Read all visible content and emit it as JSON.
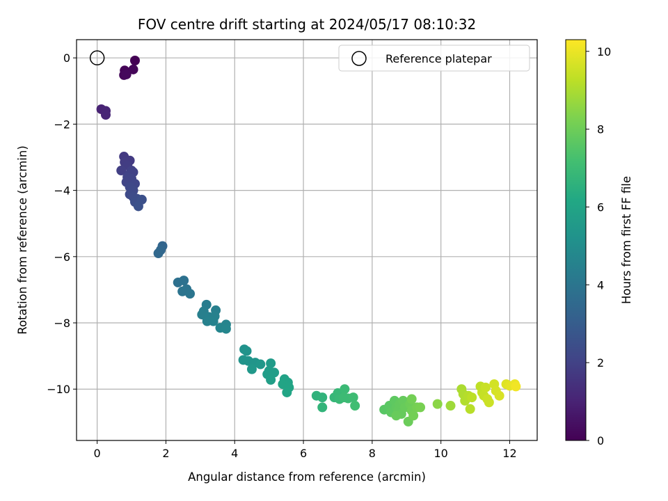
{
  "chart_data": {
    "type": "scatter",
    "title": "FOV centre drift starting at 2024/05/17 08:10:32",
    "xlabel": "Angular distance from reference (arcmin)",
    "ylabel": "Rotation from reference (arcmin)",
    "xlim": [
      -0.6,
      12.8
    ],
    "ylim": [
      -11.55,
      0.55
    ],
    "xticks": [
      0,
      2,
      4,
      6,
      8,
      10,
      12
    ],
    "yticks": [
      0,
      -2,
      -4,
      -6,
      -8,
      -10
    ],
    "grid": true,
    "legend": {
      "position": "top-right",
      "entries": [
        "Reference platepar"
      ]
    },
    "reference_point": {
      "label": "Reference platepar",
      "x": 0,
      "y": 0
    },
    "colorbar": {
      "label": "Hours from first FF file",
      "colormap": "viridis",
      "range": [
        0,
        10.3
      ],
      "ticks": [
        0,
        2,
        4,
        6,
        8,
        10
      ]
    },
    "series": [
      {
        "points": [
          [
            1.1,
            -0.08,
            0.0
          ],
          [
            0.8,
            -0.38,
            0.1
          ],
          [
            1.05,
            -0.35,
            0.15
          ],
          [
            0.78,
            -0.52,
            0.2
          ],
          [
            0.85,
            -0.5,
            0.25
          ],
          [
            0.12,
            -1.55,
            1.0
          ],
          [
            0.25,
            -1.6,
            1.05
          ],
          [
            0.25,
            -1.72,
            1.1
          ],
          [
            0.78,
            -2.98,
            1.7
          ],
          [
            0.95,
            -3.1,
            1.75
          ],
          [
            0.8,
            -3.15,
            1.8
          ],
          [
            0.88,
            -3.25,
            1.85
          ],
          [
            0.7,
            -3.4,
            1.9
          ],
          [
            1.0,
            -3.4,
            1.95
          ],
          [
            0.95,
            -3.5,
            2.0
          ],
          [
            1.05,
            -3.45,
            2.0
          ],
          [
            0.88,
            -3.6,
            2.05
          ],
          [
            1.0,
            -3.65,
            2.1
          ],
          [
            0.85,
            -3.75,
            2.1
          ],
          [
            1.1,
            -3.8,
            2.15
          ],
          [
            0.95,
            -3.9,
            2.2
          ],
          [
            1.05,
            -4.0,
            2.25
          ],
          [
            0.95,
            -4.12,
            2.3
          ],
          [
            1.05,
            -4.2,
            2.35
          ],
          [
            1.15,
            -4.25,
            2.4
          ],
          [
            1.1,
            -4.35,
            2.45
          ],
          [
            1.3,
            -4.28,
            2.5
          ],
          [
            1.2,
            -4.48,
            2.55
          ],
          [
            1.9,
            -5.68,
            3.35
          ],
          [
            1.85,
            -5.8,
            3.4
          ],
          [
            1.78,
            -5.9,
            3.45
          ],
          [
            2.35,
            -6.78,
            3.8
          ],
          [
            2.52,
            -6.72,
            3.85
          ],
          [
            2.6,
            -6.98,
            3.9
          ],
          [
            2.48,
            -7.05,
            3.95
          ],
          [
            2.7,
            -7.12,
            4.0
          ],
          [
            3.18,
            -7.45,
            4.3
          ],
          [
            3.1,
            -7.65,
            4.35
          ],
          [
            3.45,
            -7.62,
            4.4
          ],
          [
            3.05,
            -7.75,
            4.4
          ],
          [
            3.25,
            -7.82,
            4.45
          ],
          [
            3.2,
            -7.95,
            4.5
          ],
          [
            3.42,
            -7.8,
            4.5
          ],
          [
            3.38,
            -7.95,
            4.55
          ],
          [
            3.75,
            -8.05,
            4.6
          ],
          [
            3.58,
            -8.15,
            4.65
          ],
          [
            3.75,
            -8.18,
            4.7
          ],
          [
            4.28,
            -8.8,
            5.2
          ],
          [
            4.35,
            -8.85,
            5.25
          ],
          [
            4.25,
            -9.12,
            5.3
          ],
          [
            4.4,
            -9.15,
            5.3
          ],
          [
            4.6,
            -9.2,
            5.35
          ],
          [
            4.75,
            -9.25,
            5.4
          ],
          [
            4.5,
            -9.4,
            5.45
          ],
          [
            5.05,
            -9.22,
            5.6
          ],
          [
            5.0,
            -9.45,
            5.65
          ],
          [
            5.15,
            -9.5,
            5.7
          ],
          [
            4.95,
            -9.55,
            5.7
          ],
          [
            5.05,
            -9.72,
            5.75
          ],
          [
            5.45,
            -9.7,
            5.9
          ],
          [
            5.55,
            -9.8,
            5.95
          ],
          [
            5.4,
            -9.85,
            6.0
          ],
          [
            5.58,
            -9.95,
            6.0
          ],
          [
            5.52,
            -10.1,
            6.05
          ],
          [
            6.38,
            -10.2,
            6.6
          ],
          [
            6.55,
            -10.25,
            6.65
          ],
          [
            6.55,
            -10.55,
            6.7
          ],
          [
            6.9,
            -10.25,
            6.8
          ],
          [
            7.0,
            -10.12,
            6.85
          ],
          [
            7.05,
            -10.3,
            6.9
          ],
          [
            7.2,
            -10.0,
            6.95
          ],
          [
            7.18,
            -10.25,
            7.0
          ],
          [
            7.3,
            -10.28,
            7.0
          ],
          [
            7.45,
            -10.25,
            7.05
          ],
          [
            7.5,
            -10.5,
            7.1
          ],
          [
            8.35,
            -10.62,
            7.6
          ],
          [
            8.5,
            -10.5,
            7.65
          ],
          [
            8.55,
            -10.7,
            7.7
          ],
          [
            8.65,
            -10.35,
            7.7
          ],
          [
            8.7,
            -10.55,
            7.75
          ],
          [
            8.75,
            -10.65,
            7.8
          ],
          [
            8.8,
            -10.45,
            7.8
          ],
          [
            8.85,
            -10.75,
            7.85
          ],
          [
            8.9,
            -10.35,
            7.85
          ],
          [
            8.95,
            -10.55,
            7.9
          ],
          [
            8.7,
            -10.8,
            7.9
          ],
          [
            9.05,
            -10.98,
            7.95
          ],
          [
            9.1,
            -10.45,
            8.0
          ],
          [
            9.15,
            -10.65,
            8.05
          ],
          [
            9.2,
            -10.8,
            8.1
          ],
          [
            9.15,
            -10.3,
            8.1
          ],
          [
            9.3,
            -10.55,
            8.15
          ],
          [
            9.4,
            -10.55,
            8.2
          ],
          [
            9.9,
            -10.45,
            8.5
          ],
          [
            10.28,
            -10.5,
            8.8
          ],
          [
            10.6,
            -10.0,
            9.0
          ],
          [
            10.65,
            -10.15,
            9.05
          ],
          [
            10.7,
            -10.35,
            9.1
          ],
          [
            10.8,
            -10.2,
            9.15
          ],
          [
            10.85,
            -10.6,
            9.2
          ],
          [
            10.9,
            -10.25,
            9.25
          ],
          [
            11.15,
            -9.92,
            9.3
          ],
          [
            11.2,
            -10.1,
            9.35
          ],
          [
            11.25,
            -10.2,
            9.4
          ],
          [
            11.3,
            -9.95,
            9.45
          ],
          [
            11.35,
            -10.3,
            9.5
          ],
          [
            11.4,
            -10.4,
            9.5
          ],
          [
            11.55,
            -9.85,
            9.6
          ],
          [
            11.6,
            -10.05,
            9.65
          ],
          [
            11.7,
            -10.2,
            9.7
          ],
          [
            11.9,
            -9.85,
            9.8
          ],
          [
            12.0,
            -9.9,
            9.9
          ],
          [
            12.15,
            -9.85,
            10.0
          ],
          [
            12.18,
            -9.92,
            10.1
          ]
        ]
      }
    ]
  }
}
